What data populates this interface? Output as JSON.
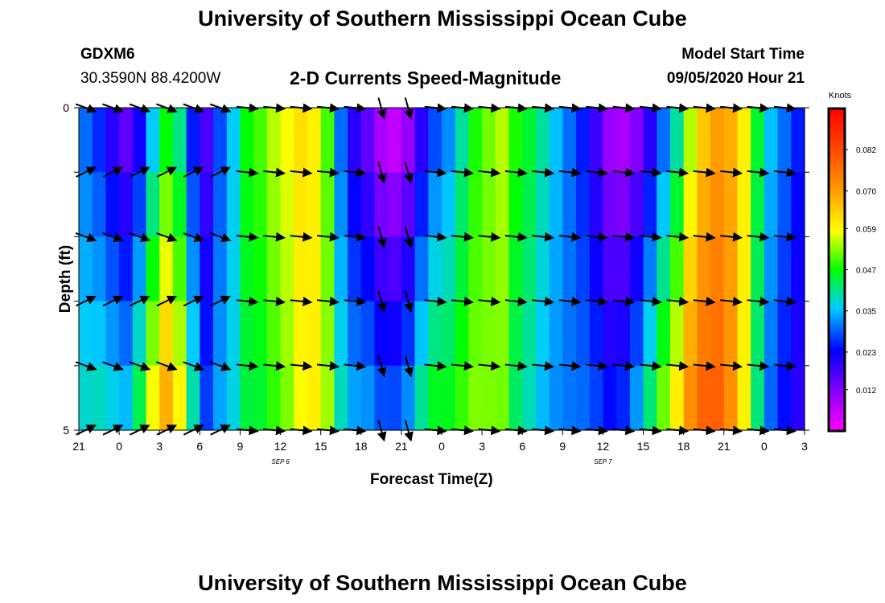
{
  "page_title": "University of Southern Mississippi Ocean Cube",
  "footer_title": "University of Southern Mississippi Ocean Cube",
  "station": {
    "id": "GDXM6",
    "coords": "30.3590N 88.4200W"
  },
  "model": {
    "label": "Model Start Time",
    "start": "09/05/2020 Hour 21"
  },
  "chart_data": {
    "type": "heatmap",
    "title": "2-D Currents Speed-Magnitude",
    "xlabel": "Forecast Time(Z)",
    "ylabel": "Depth (ft)",
    "x_tick_labels": [
      "21",
      "0",
      "3",
      "6",
      "9",
      "12",
      "15",
      "18",
      "21",
      "0",
      "3",
      "6",
      "9",
      "12",
      "15",
      "18",
      "21",
      "0",
      "3"
    ],
    "date_labels": [
      {
        "text": "SEP 6",
        "hour_index": 15
      },
      {
        "text": "SEP 7",
        "hour_index": 39
      }
    ],
    "y_tick_labels": [
      "0",
      "5"
    ],
    "ylim": [
      0,
      5
    ],
    "hours_range": [
      0,
      54
    ],
    "colorbar": {
      "label": "Knots",
      "ticks": [
        "0.082",
        "0.070",
        "0.059",
        "0.047",
        "0.035",
        "0.023",
        "0.012"
      ],
      "min": 0.0,
      "max": 0.094
    },
    "depth_levels": 5,
    "speed_knots_by_hour_near_surface": [
      0.03,
      0.026,
      0.02,
      0.015,
      0.022,
      0.036,
      0.047,
      0.041,
      0.025,
      0.017,
      0.028,
      0.036,
      0.047,
      0.05,
      0.055,
      0.058,
      0.062,
      0.06,
      0.05,
      0.03,
      0.02,
      0.015,
      0.008,
      0.006,
      0.01,
      0.02,
      0.028,
      0.032,
      0.04,
      0.048,
      0.052,
      0.055,
      0.048,
      0.045,
      0.04,
      0.035,
      0.03,
      0.025,
      0.018,
      0.01,
      0.008,
      0.012,
      0.02,
      0.03,
      0.04,
      0.055,
      0.065,
      0.07,
      0.068,
      0.06,
      0.045,
      0.035,
      0.03,
      0.025
    ]
  }
}
